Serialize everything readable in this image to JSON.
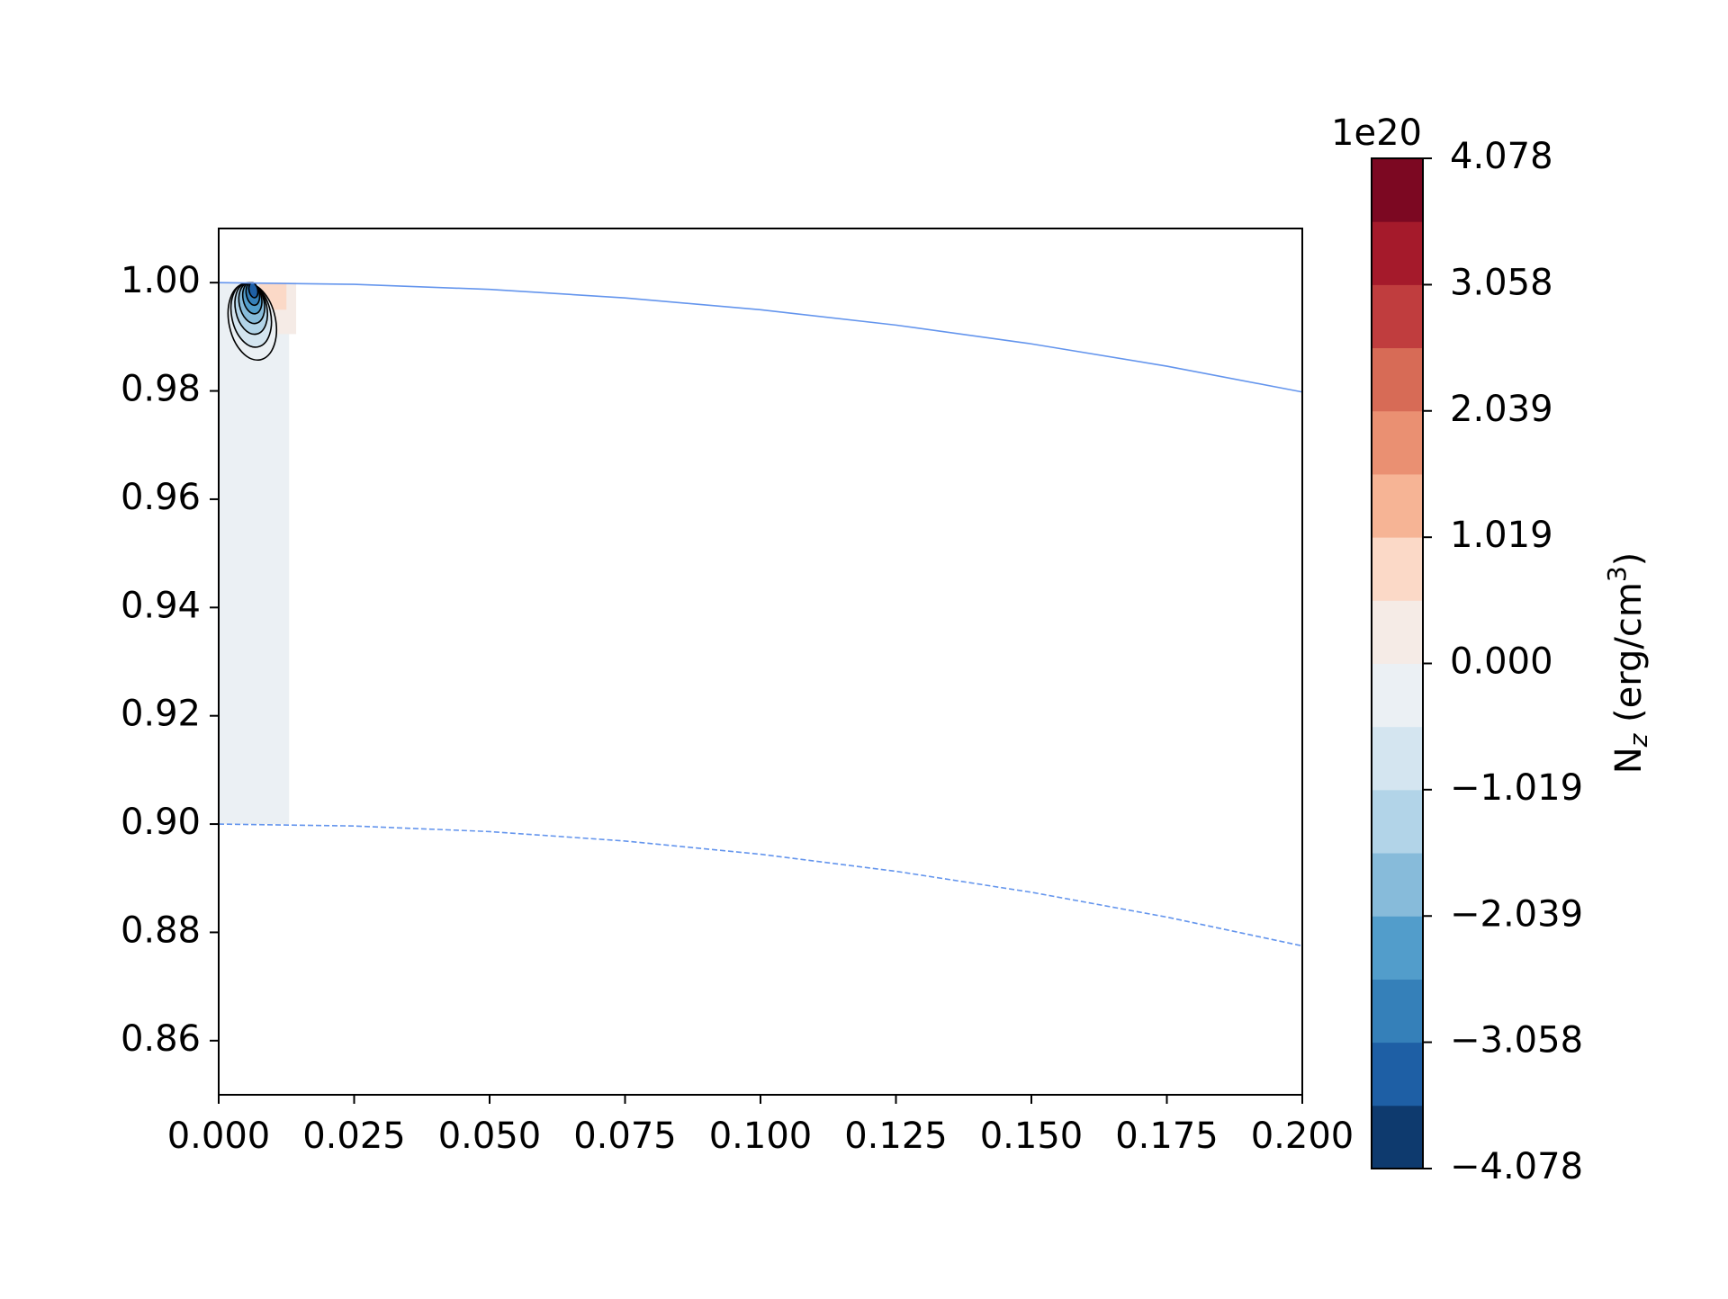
{
  "chart_data": {
    "type": "contourf",
    "xlim": [
      0,
      0.2
    ],
    "ylim": [
      0.85,
      1.01
    ],
    "xticks": [
      {
        "value": 0,
        "label": "0.000"
      },
      {
        "value": 0.025,
        "label": "0.025"
      },
      {
        "value": 0.05,
        "label": "0.050"
      },
      {
        "value": 0.075,
        "label": "0.075"
      },
      {
        "value": 0.1,
        "label": "0.100"
      },
      {
        "value": 0.125,
        "label": "0.125"
      },
      {
        "value": 0.15,
        "label": "0.150"
      },
      {
        "value": 0.175,
        "label": "0.175"
      },
      {
        "value": 0.2,
        "label": "0.200"
      }
    ],
    "yticks": [
      {
        "value": 0.86,
        "label": "0.86"
      },
      {
        "value": 0.88,
        "label": "0.88"
      },
      {
        "value": 0.9,
        "label": "0.90"
      },
      {
        "value": 0.92,
        "label": "0.92"
      },
      {
        "value": 0.94,
        "label": "0.94"
      },
      {
        "value": 0.96,
        "label": "0.96"
      },
      {
        "value": 0.98,
        "label": "0.98"
      },
      {
        "value": 1,
        "label": "1.00"
      }
    ],
    "clim": [
      -4.078,
      4.078
    ],
    "colorbar_ticks": [
      {
        "value": -4.078,
        "label": "−4.078"
      },
      {
        "value": -3.058,
        "label": "−3.058"
      },
      {
        "value": -2.039,
        "label": "−2.039"
      },
      {
        "value": -1.019,
        "label": "−1.019"
      },
      {
        "value": 0,
        "label": "0.000"
      },
      {
        "value": 1.019,
        "label": "1.019"
      },
      {
        "value": 2.039,
        "label": "2.039"
      },
      {
        "value": 3.058,
        "label": "3.058"
      },
      {
        "value": 4.078,
        "label": "4.078"
      }
    ],
    "colorbar_offset": "1e20",
    "colorbar_label": [
      "N",
      "z",
      " (erg/cm",
      "3",
      ")"
    ],
    "colors": [
      "#0e3a6e",
      "#1e5fa5",
      "#3580b9",
      "#529dcb",
      "#87bbda",
      "#b2d4e8",
      "#d4e5f0",
      "#ebf0f4",
      "#f5ebe6",
      "#fbd9c7",
      "#f6b495",
      "#ea9072",
      "#d76b56",
      "#c03d3e",
      "#a51a2b",
      "#7c0822"
    ],
    "patches": [
      {
        "x": [
          0,
          0.013
        ],
        "y": [
          0.9,
          1.0
        ],
        "value": -0.2
      },
      {
        "x": [
          0.009,
          0.0143
        ],
        "y": [
          0.9905,
          1.0
        ],
        "value": 0.2
      },
      {
        "x": [
          0.0075,
          0.0125
        ],
        "y": [
          0.995,
          1.0
        ],
        "value": 0.8
      }
    ],
    "contours": [
      {
        "level": -0.5,
        "x": 0.0062,
        "y": 0.9928,
        "rx": 0.0043,
        "ry": 0.0072
      },
      {
        "level": -1.0,
        "x": 0.006,
        "y": 0.994,
        "rx": 0.0036,
        "ry": 0.006
      },
      {
        "level": -1.5,
        "x": 0.006,
        "y": 0.9952,
        "rx": 0.0029,
        "ry": 0.0048
      },
      {
        "level": -2.0,
        "x": 0.0061,
        "y": 0.9962,
        "rx": 0.0023,
        "ry": 0.0038
      },
      {
        "level": -2.5,
        "x": 0.0062,
        "y": 0.9971,
        "rx": 0.0017,
        "ry": 0.0029
      },
      {
        "level": -3.0,
        "x": 0.0063,
        "y": 0.9979,
        "rx": 0.0012,
        "ry": 0.0021
      },
      {
        "level": -3.5,
        "x": 0.0064,
        "y": 0.9986,
        "rx": 0.0008,
        "ry": 0.0014
      }
    ],
    "lines": [
      {
        "color": "#6495ed",
        "dash": false,
        "x": [
          0,
          0.025,
          0.05,
          0.075,
          0.1,
          0.125,
          0.15,
          0.175,
          0.2
        ],
        "values": [
          1.0,
          0.99969,
          0.99875,
          0.99718,
          0.99499,
          0.99216,
          0.98869,
          0.98457,
          0.9798
        ]
      },
      {
        "color": "#6495ed",
        "dash": true,
        "x": [
          0,
          0.025,
          0.05,
          0.075,
          0.1,
          0.125,
          0.15,
          0.175,
          0.2
        ],
        "values": [
          0.9,
          0.89965,
          0.89861,
          0.89687,
          0.89443,
          0.89128,
          0.88741,
          0.88282,
          0.8775
        ]
      }
    ]
  }
}
